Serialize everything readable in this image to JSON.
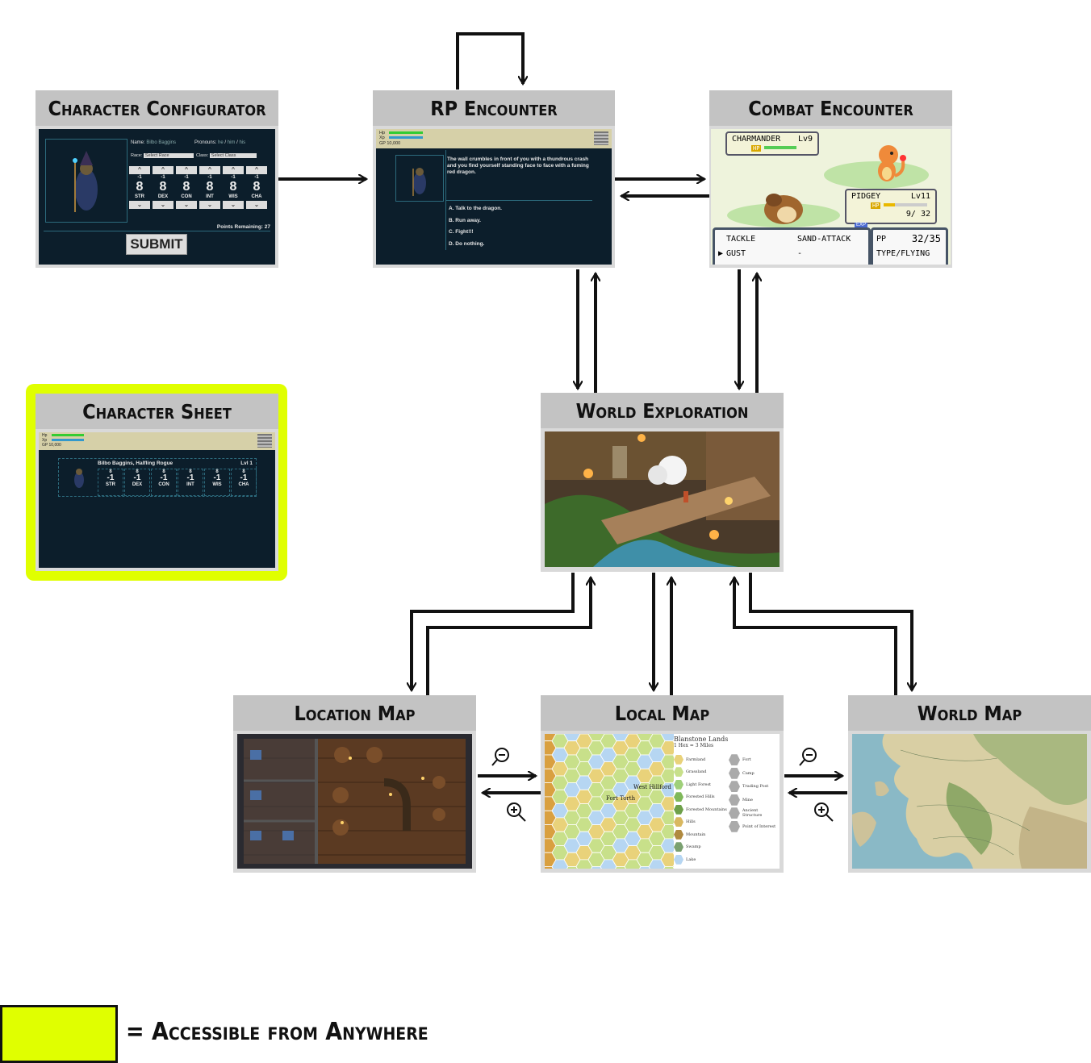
{
  "nodes": {
    "character_configurator": {
      "title": "Character Configurator",
      "name_label": "Name:",
      "name_value": "Bilbo Baggins",
      "pronouns_label": "Pronouns:",
      "pronouns": [
        "he",
        "him",
        "his"
      ],
      "race_label": "Race:",
      "race_placeholder": "Select Race",
      "class_label": "Class:",
      "class_placeholder": "Select Class",
      "stats": [
        {
          "abbr": "STR",
          "value": "8",
          "mod": "-1"
        },
        {
          "abbr": "DEX",
          "value": "8",
          "mod": "-1"
        },
        {
          "abbr": "CON",
          "value": "8",
          "mod": "-1"
        },
        {
          "abbr": "INT",
          "value": "8",
          "mod": "-1"
        },
        {
          "abbr": "WIS",
          "value": "8",
          "mod": "-1"
        },
        {
          "abbr": "CHA",
          "value": "8",
          "mod": "-1"
        }
      ],
      "points_remaining": "Points Remaining: 27",
      "submit_label": "SUBMIT"
    },
    "rp_encounter": {
      "title": "RP Encounter",
      "hp_label": "Hp",
      "xp_label": "Xp",
      "gp_label": "GP 10,000",
      "narrative": "The wall crumbles in front of you with a thundrous crash and you find yourself standing face to face with a fuming red dragon.",
      "options": [
        "A. Talk to the dragon.",
        "B. Run away.",
        "C. Fight!!!",
        "D. Do nothing."
      ]
    },
    "combat_encounter": {
      "title": "Combat Encounter",
      "enemy_name": "CHARMANDER",
      "enemy_level": "Lv9",
      "player_name": "PIDGEY",
      "player_level": "Lv11",
      "hp_label": "HP",
      "exp_label": "EXP",
      "player_hp": "9/ 32",
      "moves": [
        "TACKLE",
        "SAND-ATTACK",
        "GUST",
        "-"
      ],
      "pp_label": "PP",
      "pp_value": "32/35",
      "type_label": "TYPE/FLYING"
    },
    "character_sheet": {
      "title": "Character Sheet",
      "hp_label": "Hp",
      "xp_label": "Xp",
      "gp_label": "GP 10,000",
      "character_name": "Bilbo Baggins, Halfling Rogue",
      "level": "Lvl 1",
      "stats": [
        {
          "abbr": "STR",
          "value": "8",
          "mod": "-1"
        },
        {
          "abbr": "DEX",
          "value": "8",
          "mod": "-1"
        },
        {
          "abbr": "CON",
          "value": "8",
          "mod": "-1"
        },
        {
          "abbr": "INT",
          "value": "8",
          "mod": "-1"
        },
        {
          "abbr": "WIS",
          "value": "8",
          "mod": "-1"
        },
        {
          "abbr": "CHA",
          "value": "8",
          "mod": "-1"
        }
      ]
    },
    "world_exploration": {
      "title": "World Exploration"
    },
    "location_map": {
      "title": "Location Map"
    },
    "local_map": {
      "title": "Local Map",
      "map_title": "Blanstone Lands",
      "map_scale": "1 Hex = 3 Miles",
      "terrain_legend": [
        "Farmland",
        "Grassland",
        "Light Forest",
        "Forested Hills",
        "Forested Mountains",
        "Hills",
        "Mountain",
        "Swamp",
        "Lake"
      ],
      "feature_legend": [
        "Fort",
        "Camp",
        "Trading Post",
        "Mine",
        "Ancient Structure",
        "Point of Interest"
      ],
      "place_labels": [
        "Fort Torth",
        "West Hillford"
      ]
    },
    "world_map": {
      "title": "World Map"
    }
  },
  "legend": {
    "label": "= Accessible from Anywhere",
    "color": "#e0ff00"
  },
  "colors": {
    "highlight": "#e0ff00",
    "arrow": "#111111",
    "panel_dark": "#0c1e2b",
    "title_bar": "#c3c3c3"
  }
}
